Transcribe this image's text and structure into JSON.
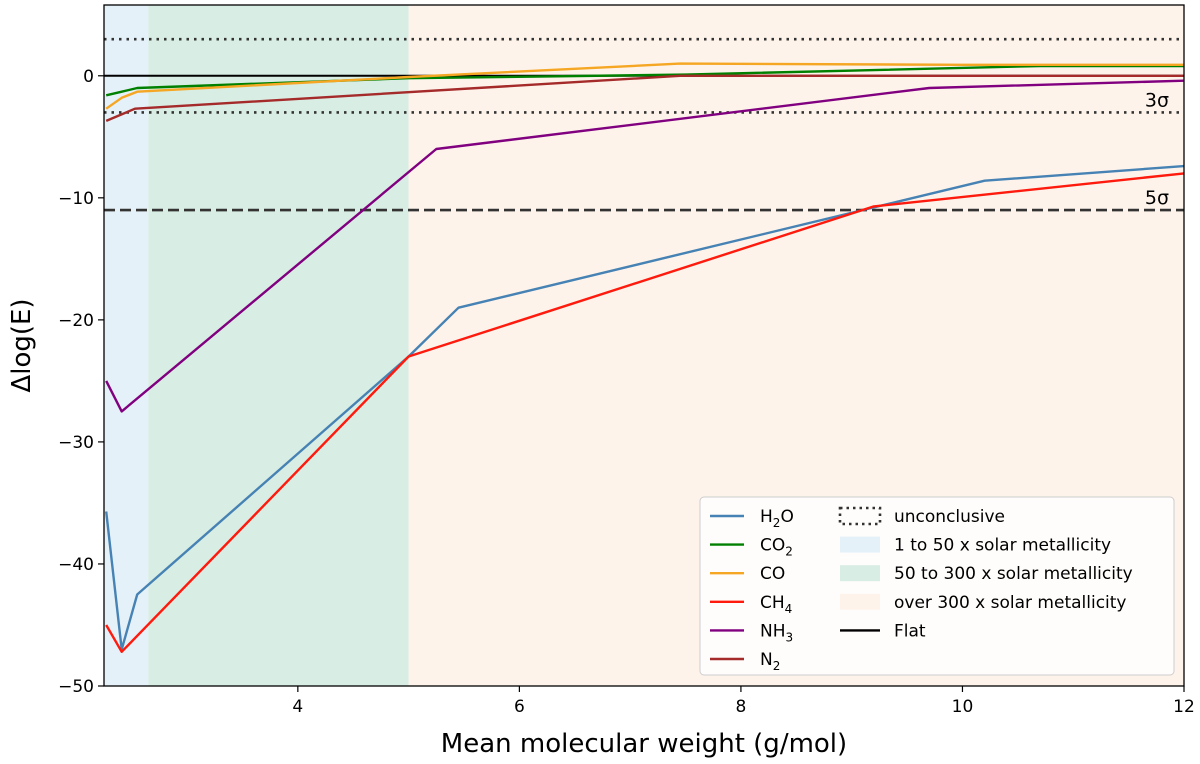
{
  "chart_data": {
    "type": "line",
    "title": "",
    "xlabel": "Mean molecular weight (g/mol)",
    "ylabel": "Δlog(E)",
    "xlim": [
      2.25,
      12
    ],
    "ylim": [
      -50,
      5.8
    ],
    "xticks": [
      4,
      6,
      8,
      10,
      12
    ],
    "yticks": [
      0,
      -10,
      -20,
      -30,
      -40,
      -50
    ],
    "regions": [
      {
        "name": "1 to 50 x solar metallicity",
        "x0": 2.25,
        "x1": 2.65,
        "color": "#e5f1f8"
      },
      {
        "name": "50 to 300 x solar metallicity",
        "x0": 2.65,
        "x1": 5.0,
        "color": "#d8ede3"
      },
      {
        "name": "over 300 x solar metallicity",
        "x0": 5.0,
        "x1": 12.0,
        "color": "#fdf3ea"
      }
    ],
    "reference_lines": [
      {
        "name": "unconclusive upper",
        "y": 3,
        "style": "dotted",
        "color": "#333333"
      },
      {
        "name": "3sigma",
        "y": -3,
        "style": "dotted",
        "color": "#333333",
        "label": "3σ"
      },
      {
        "name": "5sigma",
        "y": -11,
        "style": "dashed",
        "color": "#333333",
        "label": "5σ"
      },
      {
        "name": "Flat",
        "y": 0,
        "style": "solid",
        "color": "#000000"
      }
    ],
    "series": [
      {
        "name": "H2O",
        "formula": "H",
        "sub": "2",
        "tail": "O",
        "color": "#4682b4",
        "x": [
          2.27,
          2.41,
          2.55,
          5.0,
          5.45,
          10.2,
          12.0
        ],
        "y": [
          -35.7,
          -47.0,
          -42.5,
          -23.0,
          -19.0,
          -8.6,
          -7.4
        ]
      },
      {
        "name": "CO2",
        "formula": "CO",
        "sub": "2",
        "tail": "",
        "color": "#008000",
        "x": [
          2.27,
          2.41,
          2.55,
          5.0,
          7.5,
          10.7,
          12.0
        ],
        "y": [
          -1.6,
          -1.3,
          -1.0,
          -0.2,
          0.1,
          0.8,
          0.8
        ]
      },
      {
        "name": "CO",
        "formula": "CO",
        "sub": "",
        "tail": "",
        "color": "#f5a623",
        "x": [
          2.27,
          2.41,
          2.55,
          5.0,
          7.45,
          10.0,
          12.0
        ],
        "y": [
          -2.7,
          -1.8,
          -1.3,
          -0.1,
          1.0,
          0.9,
          0.9
        ]
      },
      {
        "name": "CH4",
        "formula": "CH",
        "sub": "4",
        "tail": "",
        "color": "#ff1a0d",
        "x": [
          2.27,
          2.41,
          5.0,
          9.2,
          12.0
        ],
        "y": [
          -45.0,
          -47.2,
          -23.0,
          -10.7,
          -8.0
        ]
      },
      {
        "name": "NH3",
        "formula": "NH",
        "sub": "3",
        "tail": "",
        "color": "#800080",
        "x": [
          2.27,
          2.41,
          5.25,
          9.7,
          12.0
        ],
        "y": [
          -25.0,
          -27.5,
          -6.0,
          -1.0,
          -0.4
        ]
      },
      {
        "name": "N2",
        "formula": "N",
        "sub": "2",
        "tail": "",
        "color": "#a52a2a",
        "x": [
          2.27,
          2.53,
          7.45,
          12.0
        ],
        "y": [
          -3.7,
          -2.7,
          0.0,
          0.0
        ]
      }
    ],
    "legend": {
      "placement": "bottom-right",
      "left_entries": [
        "H2O",
        "CO2",
        "CO",
        "CH4",
        "NH3",
        "N2"
      ],
      "right_entries": [
        {
          "label": "unconclusive",
          "kind": "dotted",
          "color": "#333333"
        },
        {
          "label": "1 to 50 x solar metallicity",
          "kind": "patch",
          "color": "#e5f1f8"
        },
        {
          "label": "50 to 300 x solar metallicity",
          "kind": "patch",
          "color": "#d8ede3"
        },
        {
          "label": "over 300 x solar metallicity",
          "kind": "patch",
          "color": "#fdf3ea"
        },
        {
          "label": "Flat",
          "kind": "solid",
          "color": "#000000"
        }
      ]
    }
  }
}
